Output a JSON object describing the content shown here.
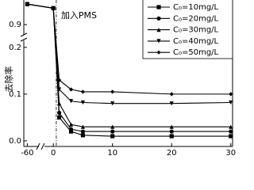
{
  "chart_data": {
    "type": "line",
    "y_label": "去除率",
    "annotation": "加入PMS",
    "vline_x": 0.5,
    "x": [
      -60,
      0,
      1,
      3,
      5,
      10,
      20,
      30
    ],
    "series": [
      {
        "name": "C₀=10mg/L",
        "color": "#000000",
        "marker": "square",
        "values": [
          1.0,
          0.98,
          0.05,
          0.02,
          0.012,
          0.01,
          0.01,
          0.01
        ]
      },
      {
        "name": "C₀=20mg/L",
        "color": "#000000",
        "marker": "circle",
        "values": [
          1.0,
          0.98,
          0.06,
          0.025,
          0.02,
          0.02,
          0.02,
          0.02
        ]
      },
      {
        "name": "C₀=30mg/L",
        "color": "#000000",
        "marker": "triangle",
        "values": [
          1.0,
          0.98,
          0.08,
          0.035,
          0.03,
          0.03,
          0.03,
          0.03
        ]
      },
      {
        "name": "C₀=40mg/L",
        "color": "#000000",
        "marker": "triangle-down",
        "values": [
          1.0,
          0.98,
          0.11,
          0.085,
          0.082,
          0.08,
          0.08,
          0.082
        ]
      },
      {
        "name": "C₀=50mg/L",
        "color": "#000000",
        "marker": "diamond",
        "values": [
          1.0,
          0.98,
          0.13,
          0.11,
          0.105,
          0.105,
          0.1,
          0.1
        ]
      }
    ],
    "xlim": [
      [
        -61.5,
        -55
      ],
      [
        -1.5,
        30.3
      ]
    ],
    "ylim": [
      [
        -0.012,
        0.215
      ],
      [
        0.85,
        1.02
      ]
    ],
    "xticks": [
      -60,
      0,
      10,
      20,
      30
    ],
    "yticks": [
      {
        "value": 0,
        "label": "0.0"
      },
      0.1,
      0.2,
      0.9
    ],
    "legend": "upper right"
  }
}
